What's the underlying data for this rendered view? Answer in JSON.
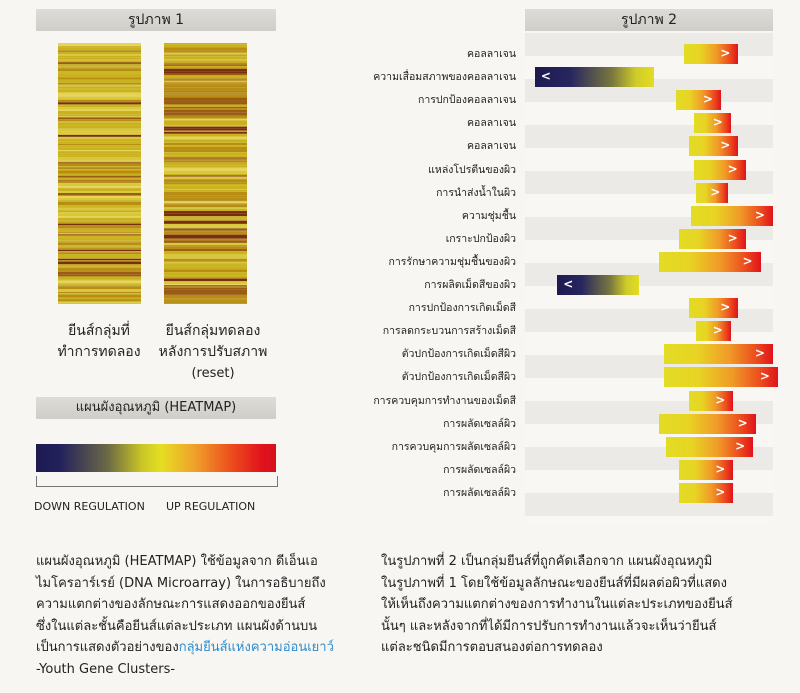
{
  "fig1": {
    "title": "รูปภาพ 1",
    "caption_1": [
      "ยีนส์กลุ่มที่",
      "ทำการทดลอง"
    ],
    "caption_2": [
      "ยีนส์กลุ่มทดลอง",
      "หลังการปรับสภาพ",
      "(reset)"
    ]
  },
  "heatmap": {
    "title": "แผนผังอุณหภูมิ (HEATMAP)",
    "down_label": "DOWN REGULATION",
    "up_label": "UP REGULATION",
    "colors": [
      "#1c1a4f",
      "#c8c527",
      "#e5df22",
      "#f0a12a",
      "#e1131c"
    ]
  },
  "fig2": {
    "title": "รูปภาพ 2",
    "genes": [
      {
        "label": "คอลลาเจน",
        "direction": "up",
        "start": 0.64,
        "end": 0.86
      },
      {
        "label": "ความเสื่อมสภาพของคอลลาเจน",
        "direction": "down",
        "start": 0.04,
        "end": 0.52
      },
      {
        "label": "การปกป้องคอลลาเจน",
        "direction": "up",
        "start": 0.61,
        "end": 0.79
      },
      {
        "label": "คอลลาเจน",
        "direction": "up",
        "start": 0.68,
        "end": 0.83
      },
      {
        "label": "คอลลาเจน",
        "direction": "up",
        "start": 0.66,
        "end": 0.86
      },
      {
        "label": "แหล่งโปรตีนของผิว",
        "direction": "up",
        "start": 0.68,
        "end": 0.89
      },
      {
        "label": "การนำส่งน้ำในผิว",
        "direction": "up",
        "start": 0.69,
        "end": 0.82
      },
      {
        "label": "ความชุ่มชื้น",
        "direction": "up",
        "start": 0.67,
        "end": 1.0
      },
      {
        "label": "เกราะปกป้องผิว",
        "direction": "up",
        "start": 0.62,
        "end": 0.89
      },
      {
        "label": "การรักษาความชุ่มชื้นของผิว",
        "direction": "up",
        "start": 0.54,
        "end": 0.95
      },
      {
        "label": "การผลิตเม็ดสีของผิว",
        "direction": "down",
        "start": 0.13,
        "end": 0.46
      },
      {
        "label": "การปกป้องการเกิดเม็ดสี",
        "direction": "up",
        "start": 0.66,
        "end": 0.86
      },
      {
        "label": "การลดกระบวนการสร้างเม็ดสี",
        "direction": "up",
        "start": 0.69,
        "end": 0.83
      },
      {
        "label": "ตัวปกป้องการเกิดเม็ดสีผิว",
        "direction": "up",
        "start": 0.56,
        "end": 1.0
      },
      {
        "label": "ตัวปกป้องการเกิดเม็ดสีผิว",
        "direction": "up",
        "start": 0.56,
        "end": 1.02
      },
      {
        "label": "การควบคุมการทำงานของเม็ดสี",
        "direction": "up",
        "start": 0.66,
        "end": 0.84
      },
      {
        "label": "การผลัดเซลล์ผิว",
        "direction": "up",
        "start": 0.54,
        "end": 0.93
      },
      {
        "label": "การควบคุมการผลัดเซลล์ผิว",
        "direction": "up",
        "start": 0.57,
        "end": 0.92
      },
      {
        "label": "การผลัดเซลล์ผิว",
        "direction": "up",
        "start": 0.62,
        "end": 0.84
      },
      {
        "label": "การผลัดเซลล์ผิว",
        "direction": "up",
        "start": 0.62,
        "end": 0.84
      }
    ]
  },
  "paragraph_left": {
    "lines": [
      "แผนผังอุณหภูมิ (HEATMAP) ใช้ข้อมูลจาก ดีเอ็นเอ",
      "ไมโครอาร์เรย์ (DNA Microarray) ในการอธิบายถึง",
      "ความแตกต่างของลักษณะการแสดงออกของยีนส์",
      "ซึ่งในแต่ละชั้นคือยีนส์แต่ละประเภท แผนผังด้านบน"
    ],
    "line_5_prefix": "เป็นการแสดงตัวอย่างของ",
    "line_5_highlight": "กลุ่มยีนส์แห่งความอ่อนเยาว์",
    "line_6": "-Youth Gene Clusters-"
  },
  "paragraph_right": {
    "lines": [
      "ในรูปภาพที่ 2 เป็นกลุ่มยีนส์ที่ถูกคัดเลือกจาก แผนผังอุณหภูมิ",
      "ในรูปภาพที่ 1  โดยใช้ข้อมูลลักษณะของยีนส์ที่มีผลต่อผิวที่แสดง",
      "ให้เห็นถึงความแตกต่างของการทำงานในแต่ละประเภทของยีนส์",
      "นั้นๆ และหลังจากที่ได้มีการปรับการทำงานแล้วจะเห็นว่ายีนส์",
      "แต่ละชนิดมีการตอบสนองต่อการทดลอง"
    ]
  }
}
